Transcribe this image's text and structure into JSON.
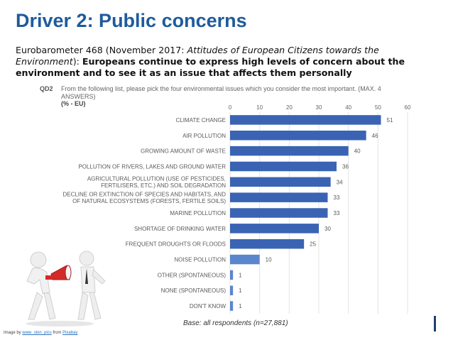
{
  "header": {
    "title": "Driver 2: Public concerns"
  },
  "intro": {
    "prefix": "Eurobarometer 468 (November 2017: ",
    "italic": "Attitudes of European Citizens towards the Environment",
    "mid": "): ",
    "bold": "Europeans continue to express high levels of concern about the environment and to see it as an issue that affects them personally"
  },
  "question": {
    "code": "QD2",
    "text": "From the following list, please pick the four environmental issues which you consider the most important. (MAX. 4 ANSWERS)",
    "unit": "(% - EU)"
  },
  "footer": {
    "base": "Base: all respondents (n=27,881)",
    "credit_prefix": "Image by ",
    "credit_author": "www_slon_pics",
    "credit_mid": " from ",
    "credit_source": "Pixabay"
  },
  "colors": {
    "title": "#1f5b9c",
    "bar_dark": "#3a63b4",
    "bar_light": "#5b86cc"
  },
  "chart_data": {
    "type": "bar",
    "orientation": "horizontal",
    "categories": [
      [
        "CLIMATE CHANGE"
      ],
      [
        "AIR POLLUTION"
      ],
      [
        "GROWING AMOUNT OF WASTE"
      ],
      [
        "POLLUTION OF RIVERS, LAKES AND GROUND WATER"
      ],
      [
        "AGRICULTURAL POLLUTION (USE OF PESTICIDES,",
        "FERTILISERS, ETC.) AND SOIL DEGRADATION"
      ],
      [
        "DECLINE OR EXTINCTION OF SPECIES AND HABITATS, AND",
        "OF NATURAL ECOSYSTEMS (FORESTS, FERTILE SOILS)"
      ],
      [
        "MARINE POLLUTION"
      ],
      [
        "SHORTAGE OF DRINKING WATER"
      ],
      [
        "FREQUENT DROUGHTS OR FLOODS"
      ],
      [
        "NOISE POLLUTION"
      ],
      [
        "OTHER (SPONTANEOUS)"
      ],
      [
        "NONE (SPONTANEOUS)"
      ],
      [
        "DON'T KNOW"
      ]
    ],
    "values": [
      51,
      46,
      40,
      36,
      34,
      33,
      33,
      30,
      25,
      10,
      1,
      1,
      1
    ],
    "xlim": [
      0,
      60
    ],
    "xticks": [
      "0",
      "10",
      "20",
      "30",
      "40",
      "50",
      "60"
    ],
    "grid": true,
    "axis_position": "top"
  }
}
